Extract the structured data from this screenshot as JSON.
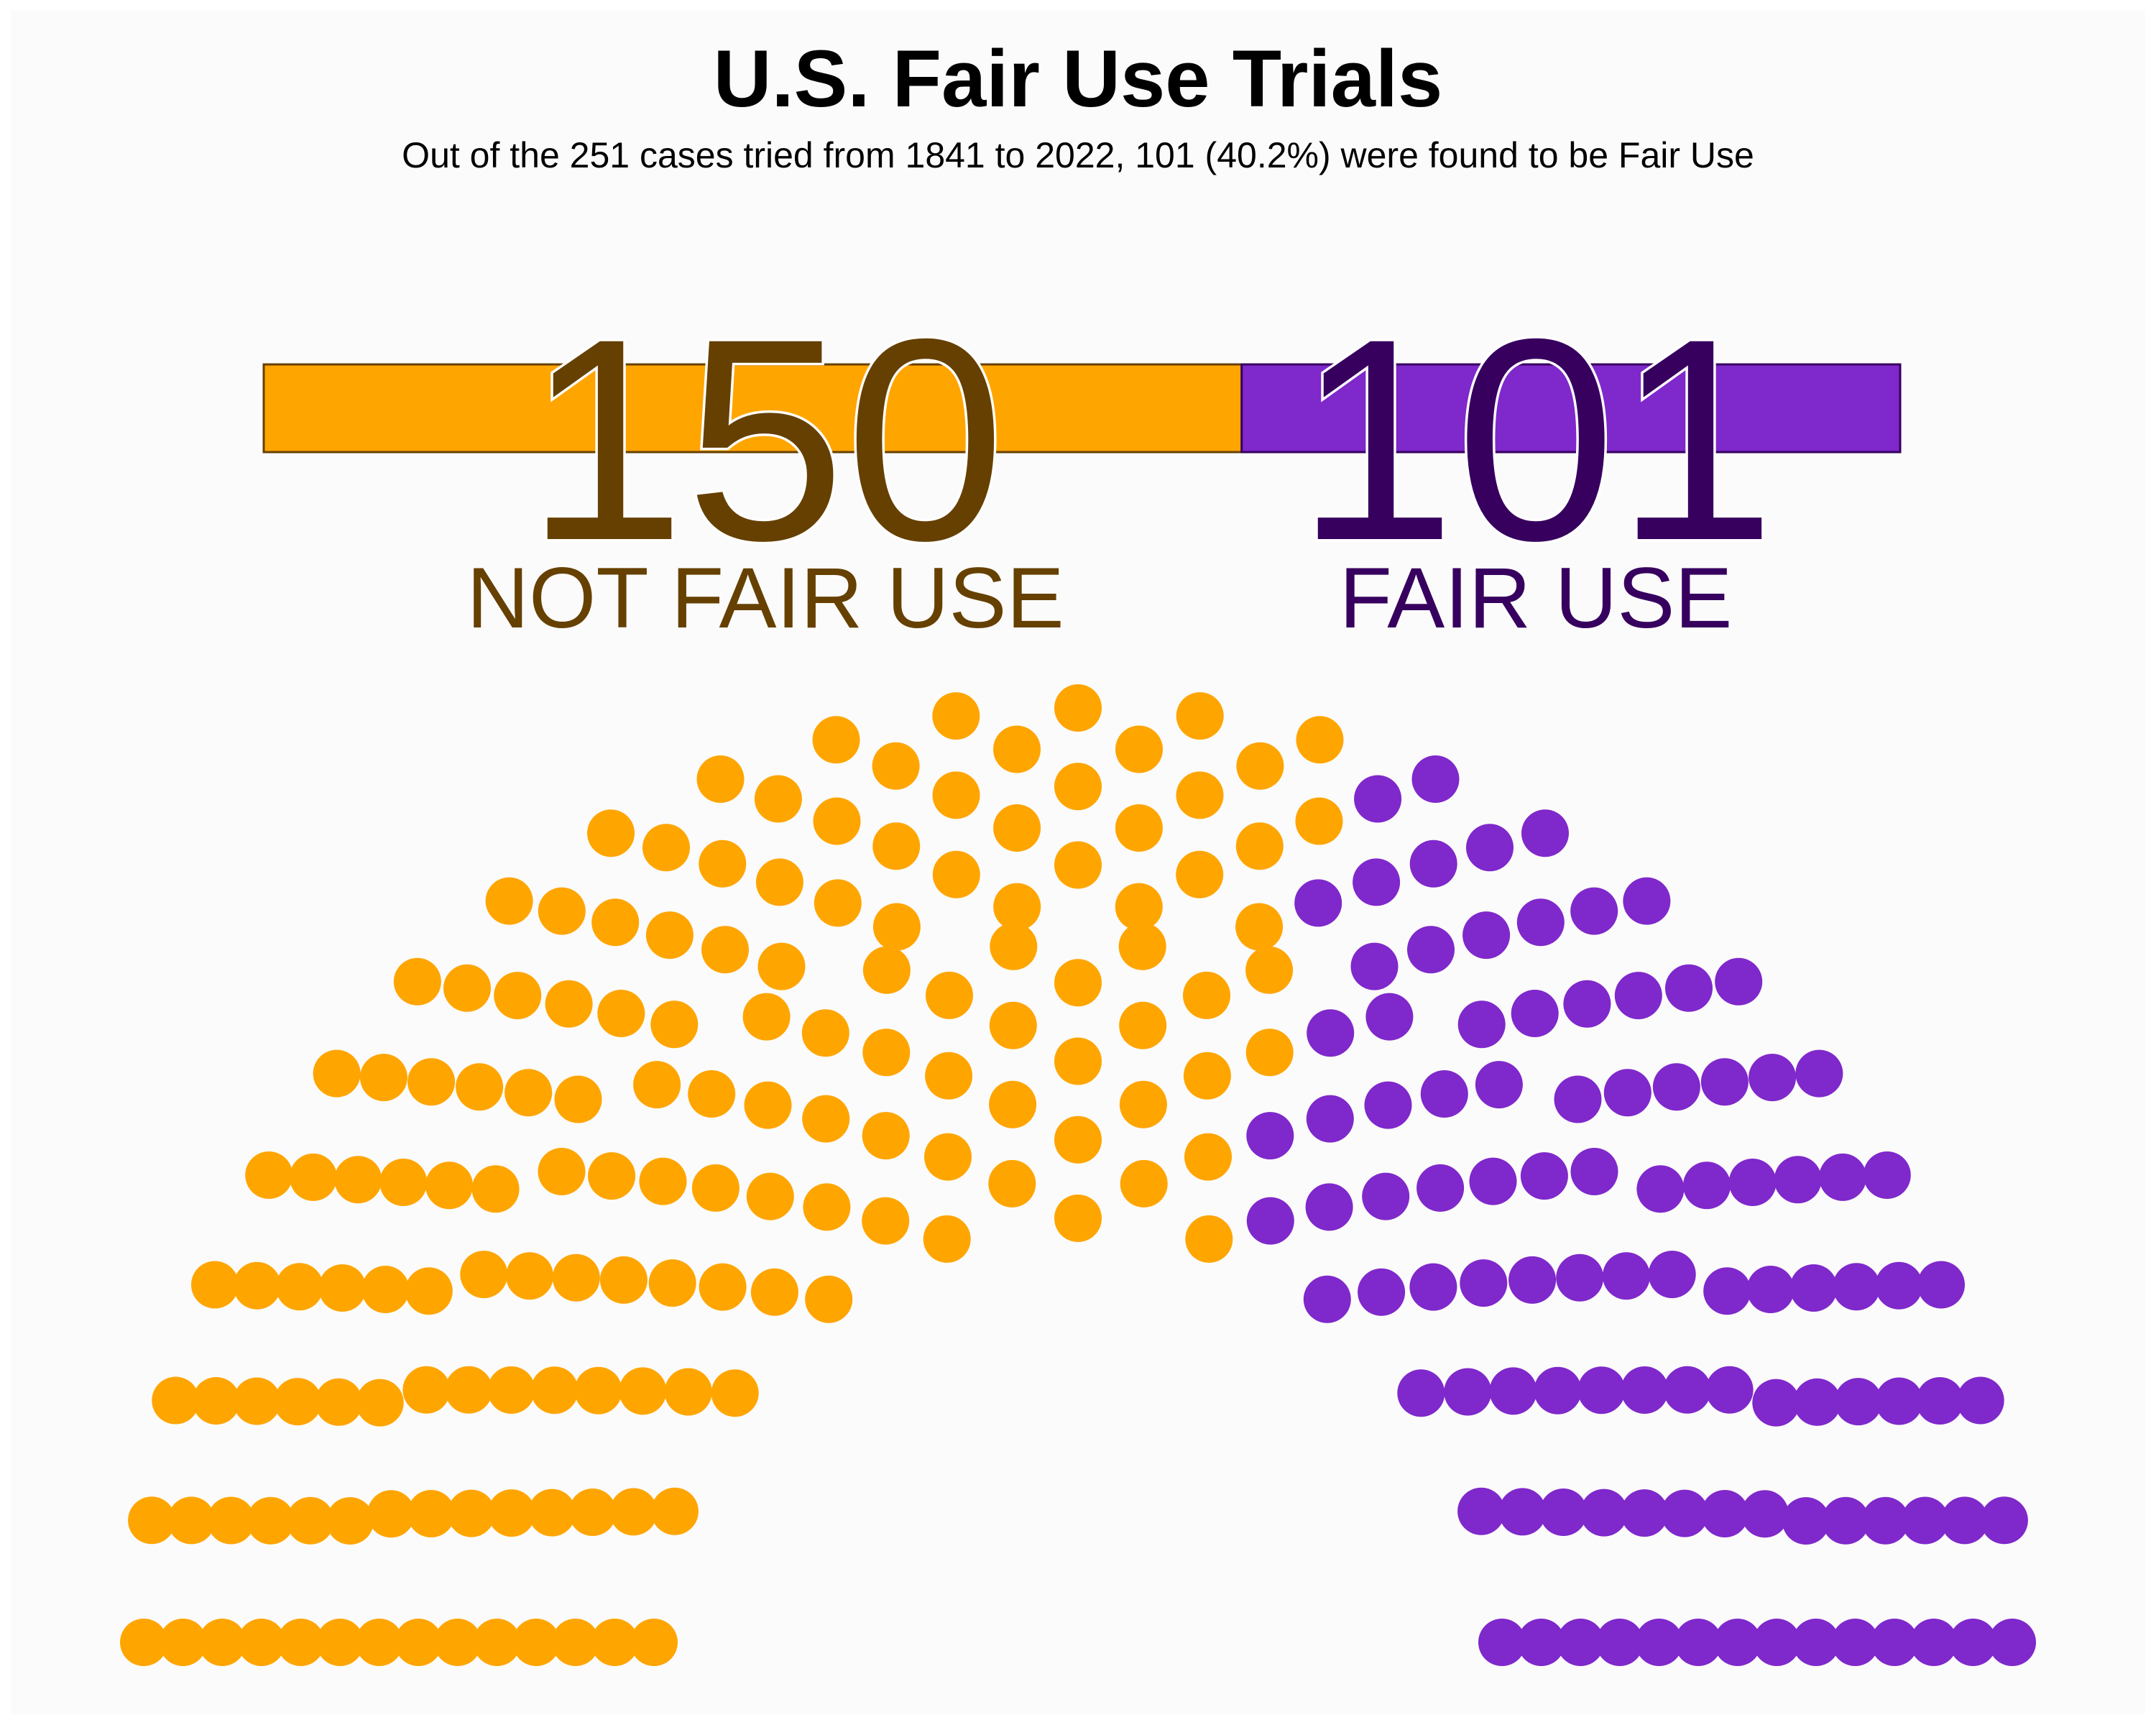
{
  "chart_data": {
    "type": "parliament",
    "title": "U.S. Fair Use Trials",
    "subtitle": "Out of the 251 cases tried from 1841 to 2022, 101 (40.2%) were found to be Fair Use",
    "total": 251,
    "categories": [
      {
        "label": "NOT FAIR USE",
        "value": 150,
        "display_value": "150",
        "color": "#FFA500",
        "text_color": "#664000"
      },
      {
        "label": "FAIR USE",
        "value": 101,
        "display_value": "101",
        "color": "#7F28CB",
        "text_color": "#37005F"
      }
    ],
    "grid": false,
    "legend": "none"
  }
}
